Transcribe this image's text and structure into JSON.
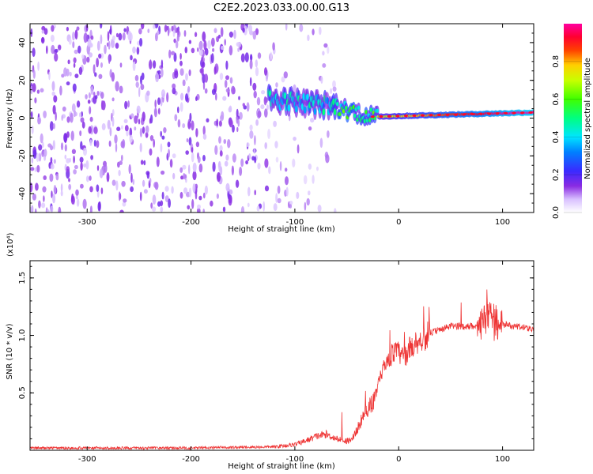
{
  "title": "C2E2.2023.033.00.00.G13",
  "colors": {
    "snr_line": "#ee3333",
    "axis": "#000000"
  },
  "chart_data": [
    {
      "type": "heatmap",
      "xlabel": "Height of straight line (km)",
      "ylabel": "Frequency (Hz)",
      "xlim": [
        -355,
        130
      ],
      "ylim": [
        -50,
        50
      ],
      "xticks": [
        -300,
        -200,
        -100,
        0,
        100
      ],
      "yticks": [
        -40,
        -20,
        0,
        20,
        40
      ],
      "colorbar": {
        "label": "Normalized spectral amplitude",
        "range": [
          0,
          1
        ],
        "ticks": [
          "0.0",
          "0.2",
          "0.4",
          "0.6",
          "0.8"
        ],
        "colormap": "rainbow (white, violet, blue, cyan, green, yellow, red, magenta)"
      },
      "features": [
        {
          "x_range": [
            -355,
            -120
          ],
          "freq_range": [
            -50,
            50
          ],
          "amplitude": 0.1,
          "pattern": "diffuse noise"
        },
        {
          "x_range": [
            -120,
            -60
          ],
          "freq_range": [
            -5,
            15
          ],
          "amplitude": 0.4,
          "pattern": "spectral line emerging"
        },
        {
          "x_range": [
            -60,
            -20
          ],
          "freq_range": [
            -2,
            8
          ],
          "amplitude": 0.6,
          "pattern": "converging line"
        },
        {
          "x_range": [
            -20,
            130
          ],
          "freq_range": [
            0,
            4
          ],
          "amplitude": 0.95,
          "pattern": "narrow line near 0-3 Hz"
        }
      ]
    },
    {
      "type": "line",
      "xlabel": "Height of straight line (km)",
      "ylabel": "SNR (10 * v/v)",
      "y_multiplier": "(x10⁴)",
      "xlim": [
        -355,
        130
      ],
      "ylim": [
        0,
        1.65
      ],
      "xticks": [
        -300,
        -200,
        -100,
        0,
        100
      ],
      "yticks": [
        "0.5",
        "1.0",
        "1.5"
      ],
      "series": [
        {
          "x": [
            -355,
            -300,
            -200,
            -120,
            -100,
            -90,
            -80,
            -70,
            -60,
            -50,
            -45,
            -40,
            -35,
            -30,
            -25,
            -20,
            -15,
            -10,
            -5,
            0,
            5,
            10,
            15,
            20,
            25,
            30,
            40,
            50,
            60,
            70,
            80,
            85,
            90,
            95,
            100,
            110,
            120,
            130
          ],
          "y": [
            0.02,
            0.02,
            0.02,
            0.03,
            0.05,
            0.08,
            0.12,
            0.14,
            0.1,
            0.08,
            0.1,
            0.18,
            0.28,
            0.35,
            0.42,
            0.55,
            0.7,
            0.8,
            0.85,
            0.85,
            0.8,
            0.88,
            0.92,
            0.95,
            0.98,
            1.02,
            1.05,
            1.08,
            1.08,
            1.08,
            1.1,
            1.15,
            1.2,
            1.1,
            1.1,
            1.08,
            1.07,
            1.05
          ]
        }
      ]
    }
  ]
}
